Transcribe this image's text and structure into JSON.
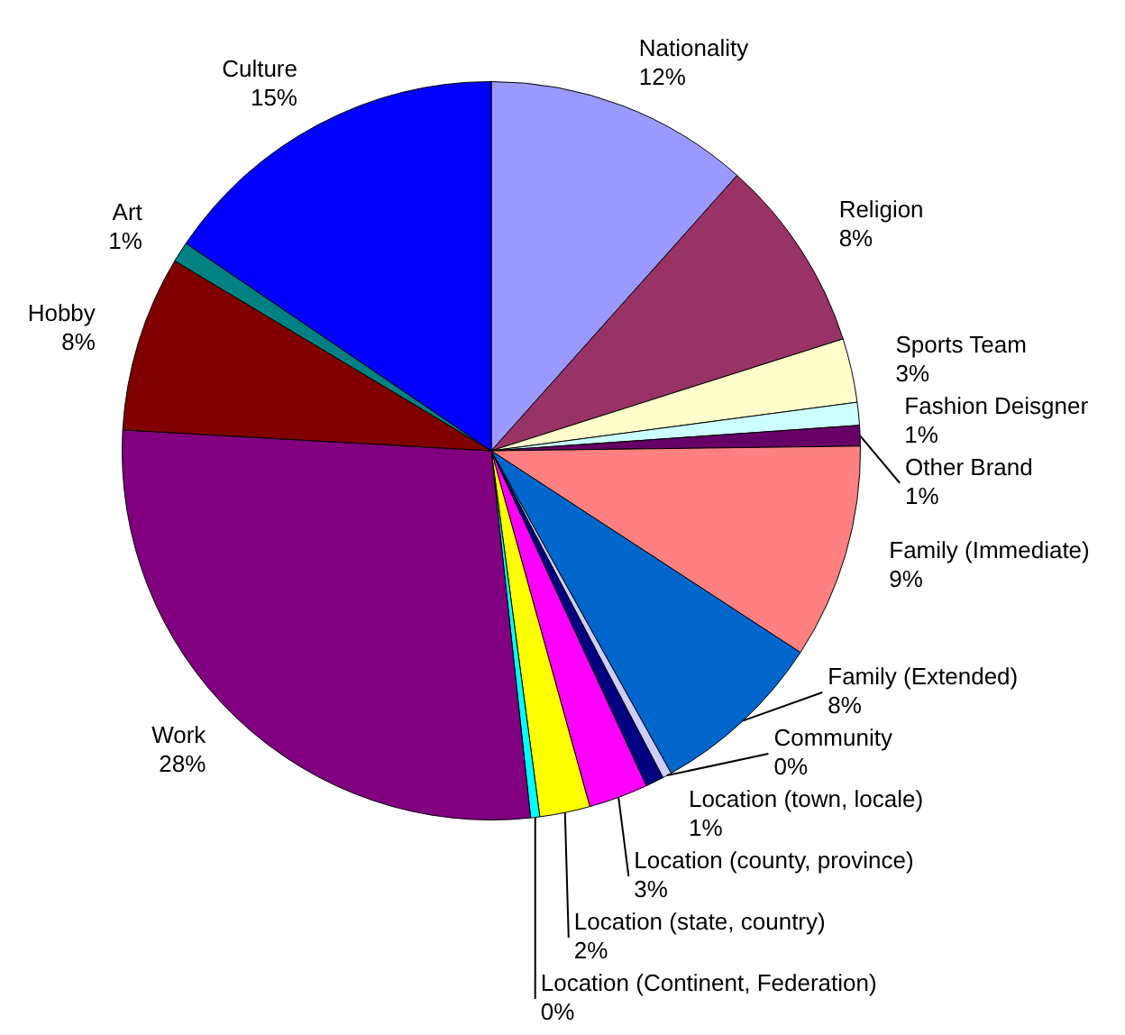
{
  "chart_data": {
    "type": "pie",
    "categories": [
      "Nationality",
      "Religion",
      "Sports Team",
      "Fashion Deisgner",
      "Other Brand",
      "Family (Immediate)",
      "Family (Extended)",
      "Community",
      "Location (town, locale)",
      "Location (county, province)",
      "Location (state, country)",
      "Location (Continent, Federation)",
      "Work",
      "Hobby",
      "Art",
      "Culture"
    ],
    "values": [
      11.6,
      8.5,
      2.8,
      1.0,
      0.9,
      9.4,
      7.7,
      0.4,
      0.8,
      2.6,
      2.2,
      0.4,
      27.6,
      7.7,
      0.9,
      15.5
    ],
    "colors": [
      "#9999ff",
      "#993366",
      "#ffffcc",
      "#ccffff",
      "#660066",
      "#ff8080",
      "#0066cc",
      "#ccccff",
      "#000080",
      "#ff00ff",
      "#ffff00",
      "#00ffff",
      "#800080",
      "#800000",
      "#008080",
      "#0000ff"
    ],
    "value_labels": [
      "12%",
      "8%",
      "3%",
      "1%",
      "1%",
      "9%",
      "8%",
      "0%",
      "1%",
      "3%",
      "2%",
      "0%",
      "28%",
      "8%",
      "1%",
      "15%"
    ],
    "legend": false
  }
}
